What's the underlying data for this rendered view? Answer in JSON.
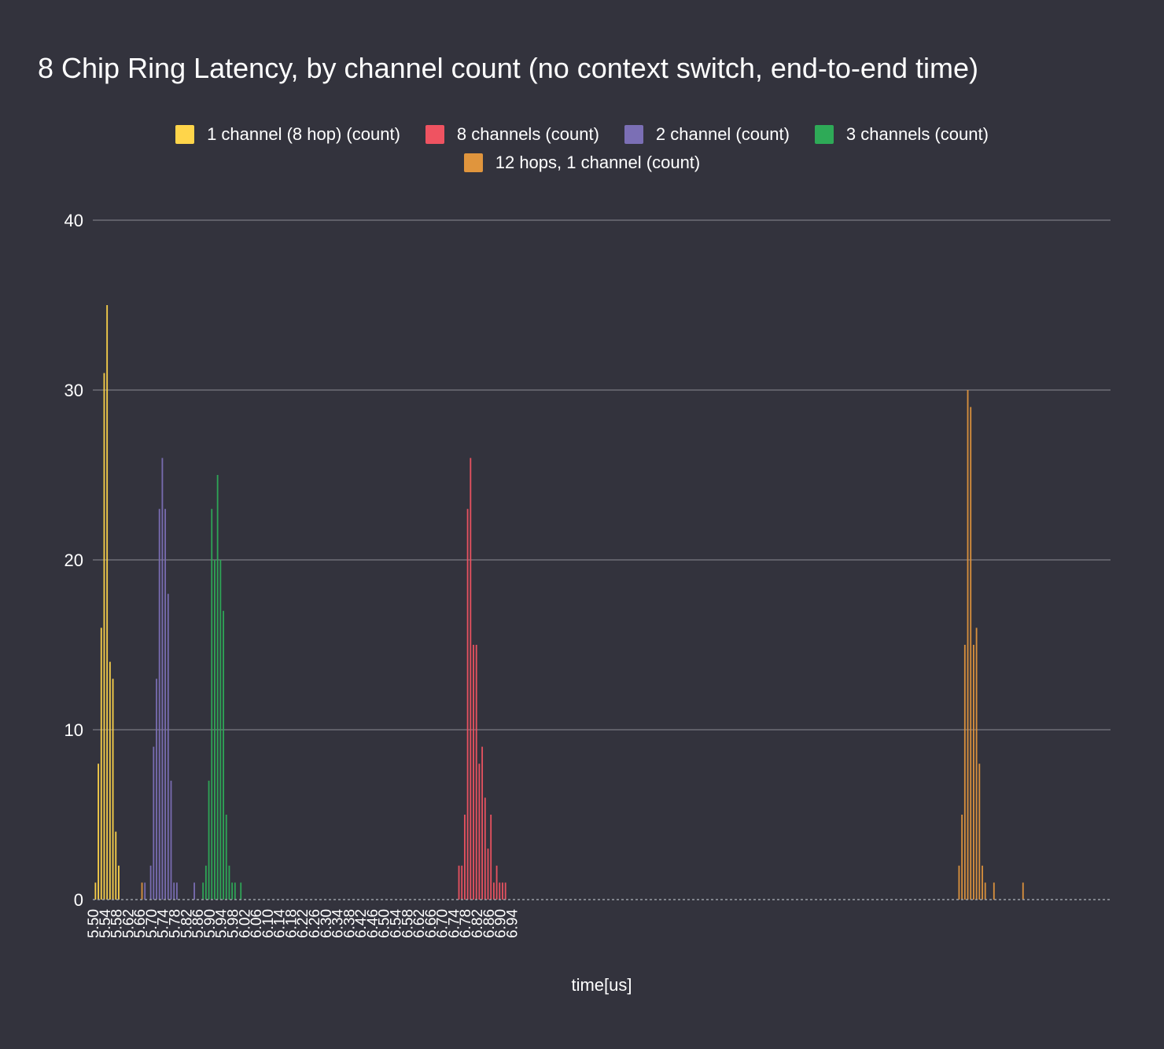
{
  "chart_data": {
    "type": "bar",
    "title": "8 Chip Ring Latency, by channel count (no context switch, end-to-end time)",
    "xlabel": "time[us]",
    "ylabel": "",
    "xlim": [
      5.5,
      9.0
    ],
    "ylim": [
      0,
      40
    ],
    "bin_width": 0.01,
    "yticks": [
      0,
      10,
      20,
      30,
      40
    ],
    "xtick_start": 5.5,
    "xtick_step": 0.04,
    "xtick_count": 37,
    "grid": true,
    "legend_position": "top-center",
    "series": [
      {
        "name": "1 channel (8 hop) (count)",
        "color": "#ffd54a",
        "points": [
          [
            5.51,
            1
          ],
          [
            5.52,
            8
          ],
          [
            5.53,
            16
          ],
          [
            5.54,
            31
          ],
          [
            5.55,
            35
          ],
          [
            5.56,
            14
          ],
          [
            5.57,
            13
          ],
          [
            5.58,
            4
          ],
          [
            5.59,
            2
          ]
        ]
      },
      {
        "name": "8 channels (count)",
        "color": "#ef5361",
        "points": [
          [
            6.76,
            2
          ],
          [
            6.77,
            2
          ],
          [
            6.78,
            5
          ],
          [
            6.79,
            23
          ],
          [
            6.8,
            26
          ],
          [
            6.81,
            15
          ],
          [
            6.82,
            15
          ],
          [
            6.83,
            8
          ],
          [
            6.84,
            9
          ],
          [
            6.85,
            6
          ],
          [
            6.86,
            3
          ],
          [
            6.87,
            5
          ],
          [
            6.88,
            1
          ],
          [
            6.89,
            2
          ],
          [
            6.9,
            1
          ],
          [
            6.91,
            1
          ],
          [
            6.92,
            1
          ]
        ]
      },
      {
        "name": "2 channel (count)",
        "color": "#7b6fb5",
        "points": [
          [
            5.68,
            1
          ],
          [
            5.7,
            2
          ],
          [
            5.71,
            9
          ],
          [
            5.72,
            13
          ],
          [
            5.73,
            23
          ],
          [
            5.74,
            26
          ],
          [
            5.75,
            23
          ],
          [
            5.76,
            18
          ],
          [
            5.77,
            7
          ],
          [
            5.78,
            1
          ],
          [
            5.79,
            1
          ],
          [
            5.85,
            1
          ]
        ]
      },
      {
        "name": "3 channels (count)",
        "color": "#2eaa57",
        "points": [
          [
            5.88,
            1
          ],
          [
            5.89,
            2
          ],
          [
            5.9,
            7
          ],
          [
            5.91,
            23
          ],
          [
            5.92,
            20
          ],
          [
            5.93,
            25
          ],
          [
            5.94,
            20
          ],
          [
            5.95,
            17
          ],
          [
            5.96,
            5
          ],
          [
            5.97,
            2
          ],
          [
            5.98,
            1
          ],
          [
            5.99,
            1
          ],
          [
            6.01,
            1
          ]
        ]
      },
      {
        "name": "12 hops, 1 channel (count)",
        "color": "#e0953d",
        "points": [
          [
            5.67,
            1
          ],
          [
            8.48,
            2
          ],
          [
            8.49,
            5
          ],
          [
            8.5,
            15
          ],
          [
            8.51,
            30
          ],
          [
            8.52,
            29
          ],
          [
            8.53,
            15
          ],
          [
            8.54,
            16
          ],
          [
            8.55,
            8
          ],
          [
            8.56,
            2
          ],
          [
            8.57,
            1
          ],
          [
            8.6,
            1
          ],
          [
            8.7,
            1
          ]
        ]
      }
    ]
  }
}
